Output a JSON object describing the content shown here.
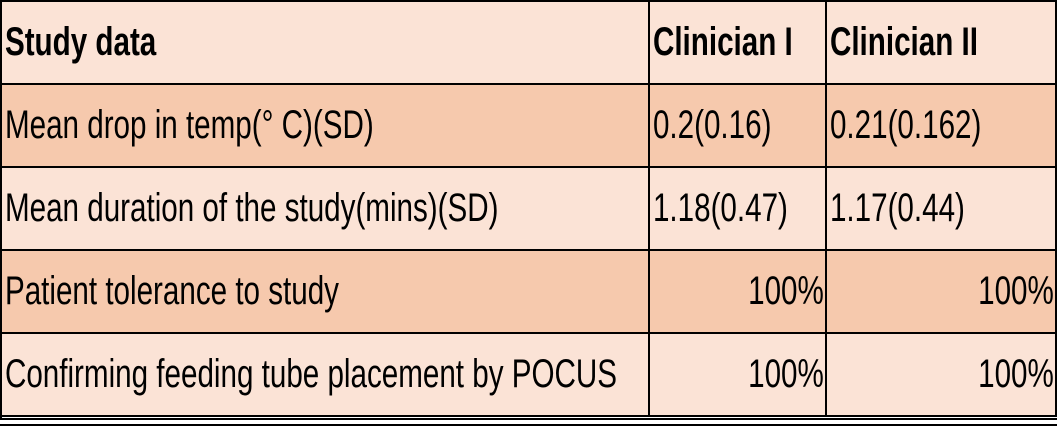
{
  "table": {
    "header": [
      "Study data",
      "Clinician I",
      "Clinician II"
    ],
    "rows": [
      [
        "Mean drop in temp(° C)(SD)",
        "0.2(0.16)",
        "0.21(0.162)"
      ],
      [
        "Mean duration of the study(mins)(SD)",
        "1.18(0.47)",
        "1.17(0.44)"
      ],
      [
        "Patient tolerance to study",
        "100%",
        "100%"
      ],
      [
        "Confirming feeding tube placement by POCUS",
        "100%",
        "100%"
      ]
    ]
  }
}
